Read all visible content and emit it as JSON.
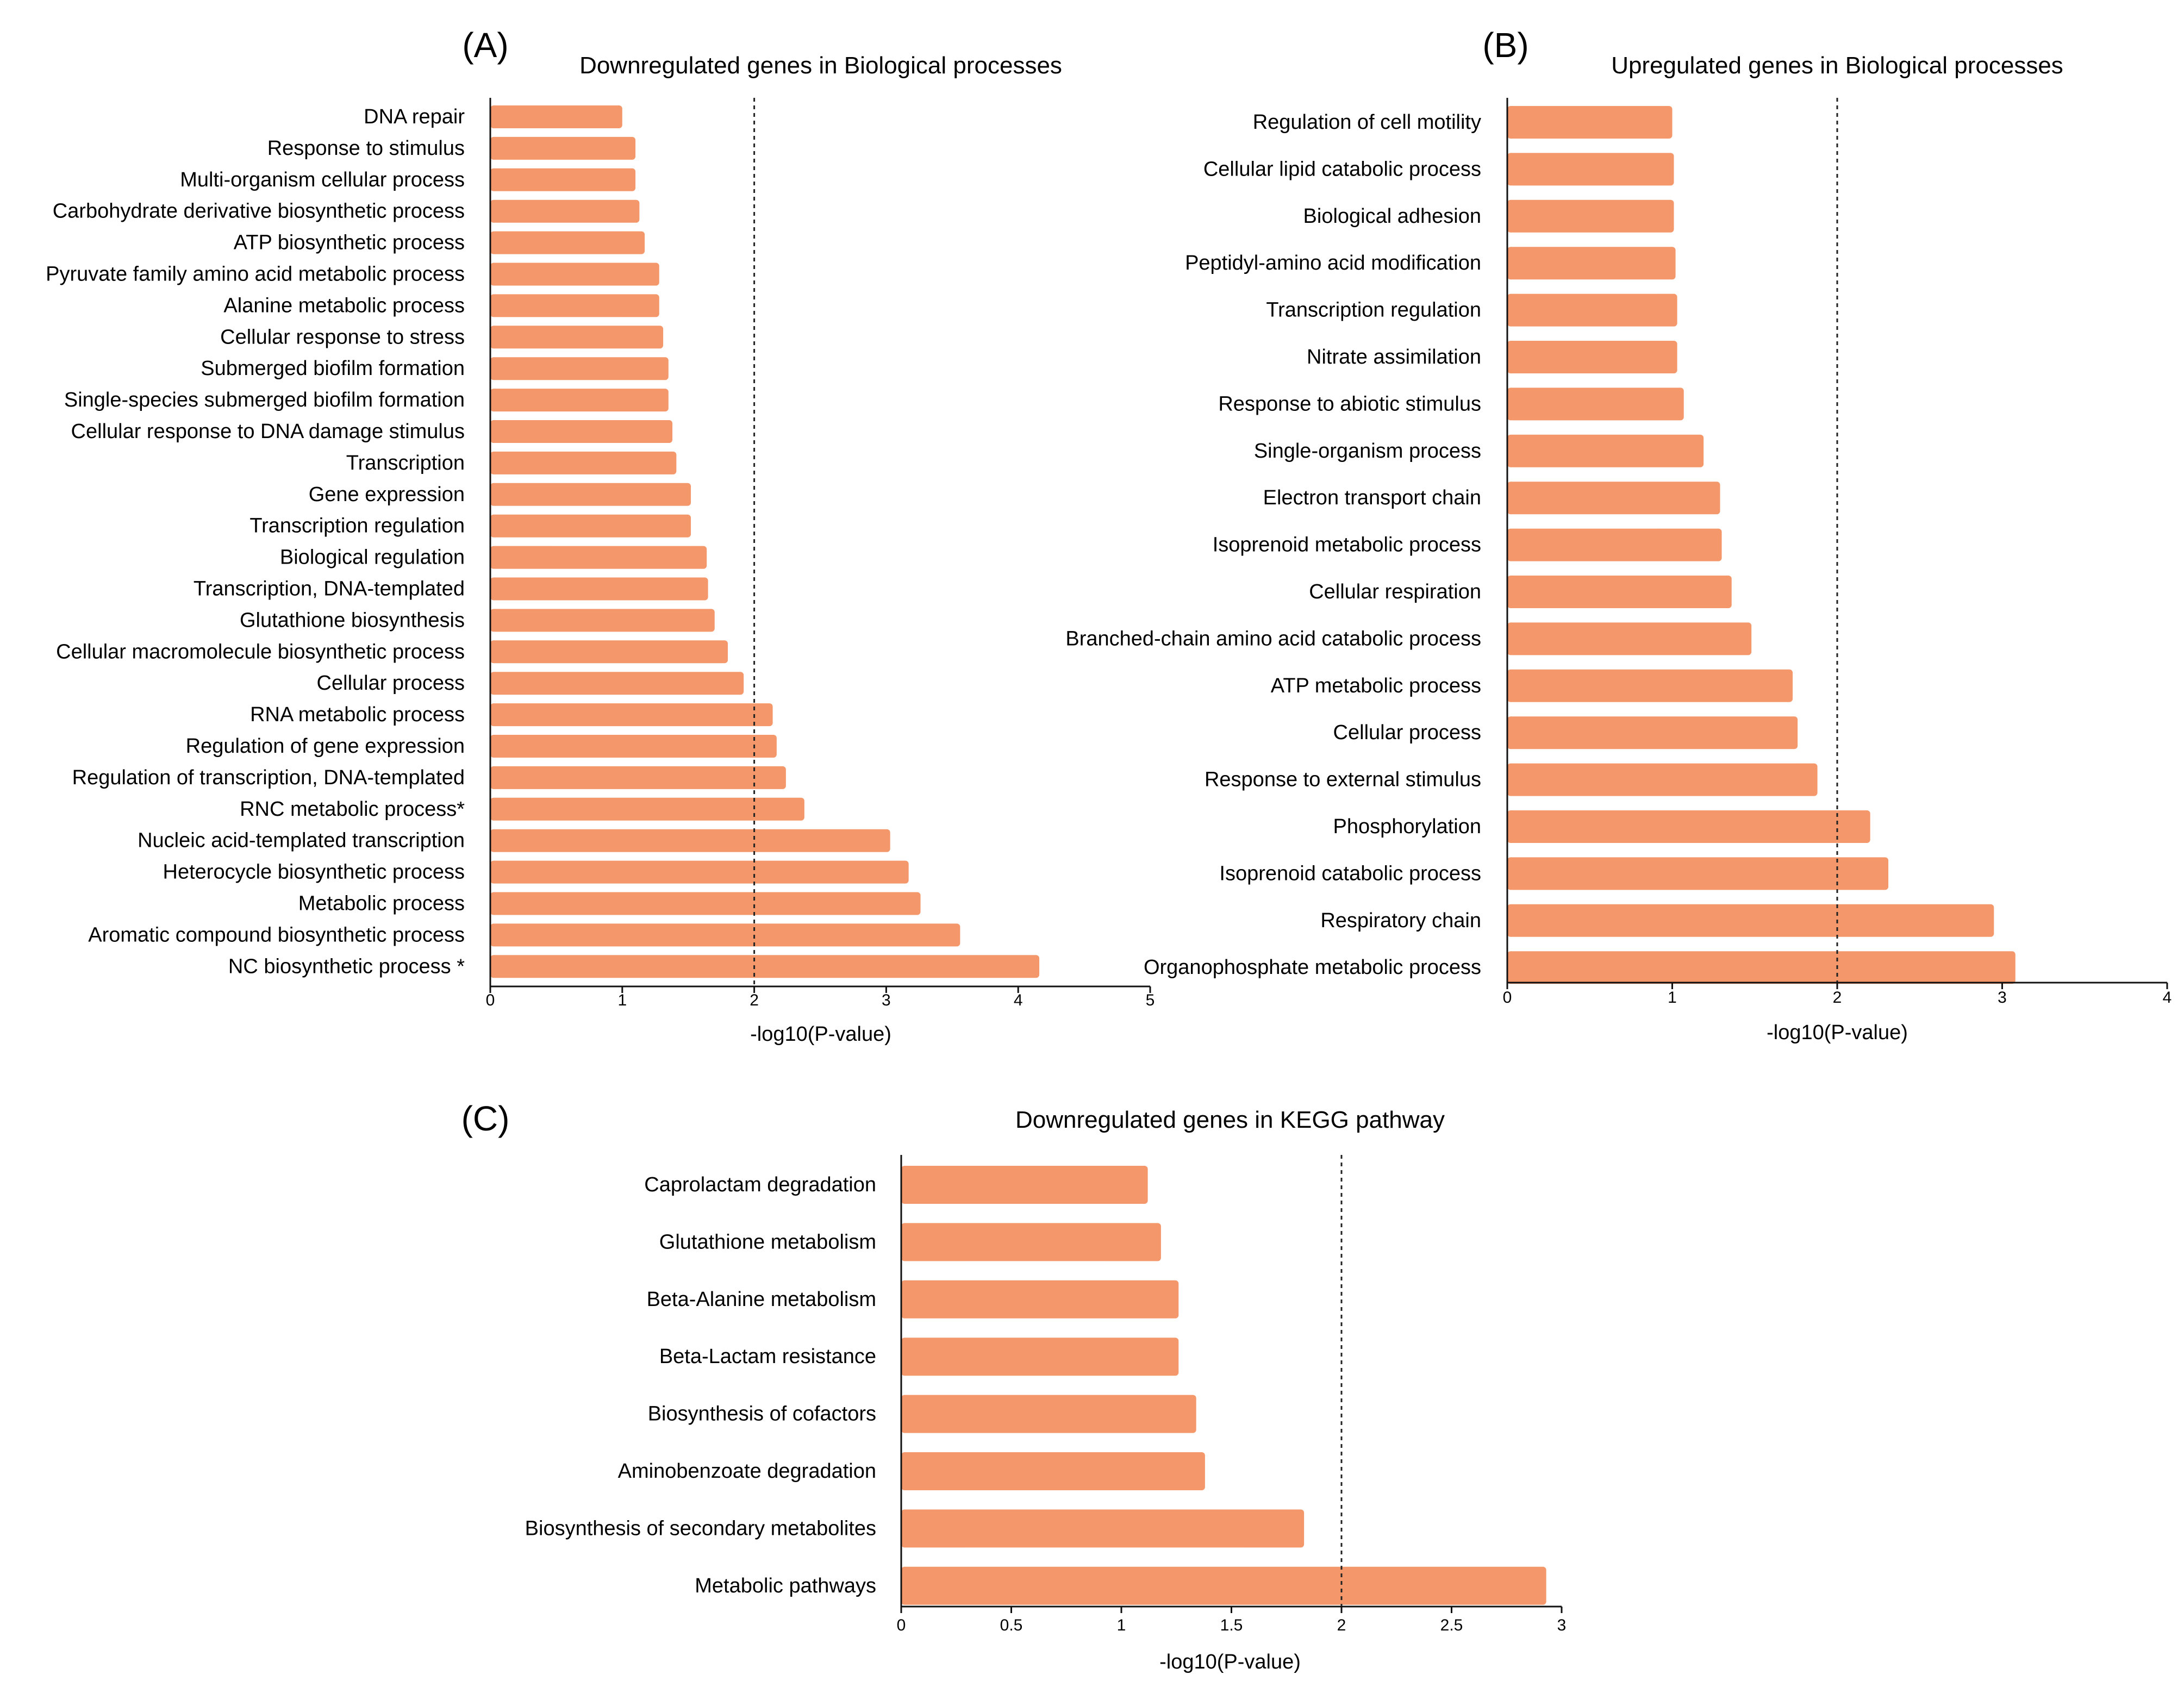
{
  "figure": {
    "bar_color": "#F4976A",
    "axis_color": "#111111"
  },
  "chart_data": [
    {
      "panel": "(A)",
      "type": "bar",
      "orientation": "horizontal",
      "title": "Downregulated genes in Biological processes",
      "xlabel": "-log10(P-value)",
      "ylabel": "",
      "xlim": [
        0,
        5
      ],
      "xticks": [
        0,
        1,
        2,
        3,
        4,
        5
      ],
      "xtick_labels": [
        "0",
        "1",
        "2",
        "3",
        "4",
        "5"
      ],
      "reference_line": 2,
      "categories": [
        "DNA repair",
        "Response to stimulus",
        "Multi-organism cellular process",
        "Carbohydrate derivative biosynthetic process",
        "ATP biosynthetic process",
        "Pyruvate family amino acid metabolic process",
        "Alanine metabolic process",
        "Cellular response to stress",
        "Submerged biofilm formation",
        "Single-species submerged biofilm formation",
        "Cellular response to DNA damage stimulus",
        "Transcription",
        "Gene expression",
        "Transcription regulation",
        "Biological regulation",
        "Transcription, DNA-templated",
        "Glutathione biosynthesis",
        "Cellular macromolecule biosynthetic process",
        "Cellular process",
        "RNA metabolic process",
        "Regulation of gene expression",
        "Regulation of transcription, DNA-templated",
        "RNC metabolic process*",
        "Nucleic acid-templated transcription",
        "Heterocycle biosynthetic process",
        "Metabolic process",
        "Aromatic compound biosynthetic process",
        "NC biosynthetic process *"
      ],
      "values": [
        1.0,
        1.1,
        1.1,
        1.13,
        1.17,
        1.28,
        1.28,
        1.31,
        1.35,
        1.35,
        1.38,
        1.41,
        1.52,
        1.52,
        1.64,
        1.65,
        1.7,
        1.8,
        1.92,
        2.14,
        2.17,
        2.24,
        2.38,
        3.03,
        3.17,
        3.26,
        3.56,
        4.16
      ]
    },
    {
      "panel": "(B)",
      "type": "bar",
      "orientation": "horizontal",
      "title": "Upregulated genes in Biological processes",
      "xlabel": "-log10(P-value)",
      "ylabel": "",
      "xlim": [
        0,
        4
      ],
      "xticks": [
        0,
        1,
        2,
        3,
        4
      ],
      "xtick_labels": [
        "0",
        "1",
        "2",
        "3",
        "4"
      ],
      "reference_line": 2,
      "categories": [
        "Regulation of cell motility",
        "Cellular lipid catabolic process",
        "Biological adhesion",
        "Peptidyl-amino acid modification",
        "Transcription regulation",
        "Nitrate assimilation",
        "Response to abiotic stimulus",
        "Single-organism process",
        "Electron transport chain",
        "Isoprenoid metabolic process",
        "Cellular respiration",
        "Branched-chain amino acid catabolic process",
        "ATP metabolic process",
        "Cellular process",
        "Response to external stimulus",
        "Phosphorylation",
        "Isoprenoid catabolic process",
        "Respiratory chain",
        "Organophosphate metabolic process"
      ],
      "values": [
        1.0,
        1.01,
        1.01,
        1.02,
        1.03,
        1.03,
        1.07,
        1.19,
        1.29,
        1.3,
        1.36,
        1.48,
        1.73,
        1.76,
        1.88,
        2.2,
        2.31,
        2.95,
        3.08
      ]
    },
    {
      "panel": "(C)",
      "type": "bar",
      "orientation": "horizontal",
      "title": "Downregulated genes in KEGG pathway",
      "xlabel": "-log10(P-value)",
      "ylabel": "",
      "xlim": [
        0,
        3
      ],
      "xticks": [
        0,
        0.5,
        1,
        1.5,
        2,
        2.5,
        3
      ],
      "xtick_labels": [
        "0",
        "0.5",
        "1",
        "1.5",
        "2",
        "2.5",
        "3"
      ],
      "reference_line": 2,
      "categories": [
        "Caprolactam degradation",
        "Glutathione metabolism",
        "Beta-Alanine metabolism",
        "Beta-Lactam resistance",
        "Biosynthesis of cofactors",
        "Aminobenzoate degradation",
        "Biosynthesis of secondary metabolites",
        "Metabolic pathways"
      ],
      "values": [
        1.12,
        1.18,
        1.26,
        1.26,
        1.34,
        1.38,
        1.83,
        2.93
      ]
    }
  ]
}
